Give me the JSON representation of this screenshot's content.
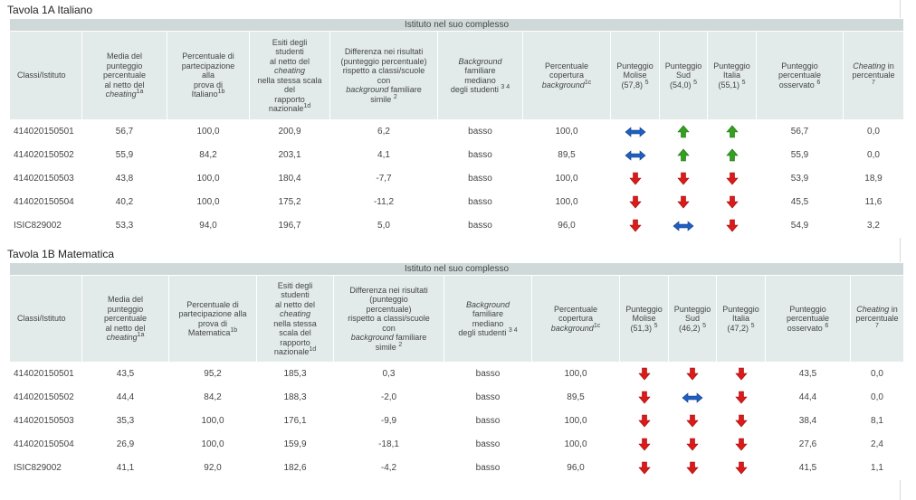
{
  "colors": {
    "caption_bg": "#cfd9d9",
    "header_bg": "#e3eaea",
    "up": "#33a020",
    "down": "#dd1a1a",
    "equal": "#1f5fbf"
  },
  "tables": [
    {
      "title": "Tavola 1A Italiano",
      "caption": "Istituto nel suo complesso",
      "headers": {
        "classi": "Classi/Istituto",
        "media": {
          "l1": "Media del",
          "l2": "punteggio",
          "l3": "percentuale",
          "l4": "al netto del",
          "l5": "cheating",
          "sup": "1a"
        },
        "partecipazione": {
          "l1": "Percentuale di",
          "l2": "partecipazione",
          "l3": "alla",
          "l4": "prova di",
          "l5": "Italiano",
          "sup": "1b"
        },
        "esiti": {
          "l1": "Esiti degli",
          "l2": "studenti",
          "l3": "al netto del",
          "l4": "cheating",
          "l5": "nella stessa scala",
          "l6": "del",
          "l7": "rapporto",
          "l8": "nazionale",
          "sup": "1d"
        },
        "differenza": {
          "l1": "Differenza nei risultati",
          "l2": "(punteggio percentuale)",
          "l3": "rispetto a classi/scuole",
          "l4": "con",
          "l5": "background",
          "l6": "familiare",
          "l7": "simile",
          "sup": "2"
        },
        "background": {
          "l1": "Background",
          "l2": "familiare",
          "l3": "mediano",
          "l4": "degli studenti",
          "sup": "3 4"
        },
        "copertura": {
          "l1": "Percentuale",
          "l2": "copertura",
          "l3": "background",
          "sup": "1c"
        },
        "molise": {
          "l1": "Punteggio",
          "l2": "Molise",
          "l3": "(57,8)",
          "sup": "5"
        },
        "sud": {
          "l1": "Punteggio",
          "l2": "Sud",
          "l3": "(54,0)",
          "sup": "5"
        },
        "italia": {
          "l1": "Punteggio",
          "l2": "Italia",
          "l3": "(55,1)",
          "sup": "5"
        },
        "osservato": {
          "l1": "Punteggio",
          "l2": "percentuale",
          "l3": "osservato",
          "sup": "6"
        },
        "cheating": {
          "l1": "Cheating",
          "l2": "in",
          "l3": "percentuale",
          "sup": "7"
        }
      },
      "rows": [
        {
          "classe": "414020150501",
          "media": "56,7",
          "partecipazione": "100,0",
          "esiti": "200,9",
          "differenza": "6,2",
          "background": "basso",
          "copertura": "100,0",
          "molise": "equal",
          "sud": "up",
          "italia": "up",
          "osservato": "56,7",
          "cheating": "0,0"
        },
        {
          "classe": "414020150502",
          "media": "55,9",
          "partecipazione": "84,2",
          "esiti": "203,1",
          "differenza": "4,1",
          "background": "basso",
          "copertura": "89,5",
          "molise": "equal",
          "sud": "up",
          "italia": "up",
          "osservato": "55,9",
          "cheating": "0,0"
        },
        {
          "classe": "414020150503",
          "media": "43,8",
          "partecipazione": "100,0",
          "esiti": "180,4",
          "differenza": "-7,7",
          "background": "basso",
          "copertura": "100,0",
          "molise": "down",
          "sud": "down",
          "italia": "down",
          "osservato": "53,9",
          "cheating": "18,9"
        },
        {
          "classe": "414020150504",
          "media": "40,2",
          "partecipazione": "100,0",
          "esiti": "175,2",
          "differenza": "-11,2",
          "background": "basso",
          "copertura": "100,0",
          "molise": "down",
          "sud": "down",
          "italia": "down",
          "osservato": "45,5",
          "cheating": "11,6"
        },
        {
          "classe": "ISIC829002",
          "media": "53,3",
          "partecipazione": "94,0",
          "esiti": "196,7",
          "differenza": "5,0",
          "background": "basso",
          "copertura": "96,0",
          "molise": "down",
          "sud": "equal",
          "italia": "down",
          "osservato": "54,9",
          "cheating": "3,2"
        }
      ]
    },
    {
      "title": "Tavola 1B Matematica",
      "caption": "Istituto nel suo complesso",
      "headers": {
        "classi": "Classi/Istituto",
        "media": {
          "l1": "Media del",
          "l2": "punteggio",
          "l3": "percentuale",
          "l4": "al netto del",
          "l5": "cheating",
          "sup": "1a"
        },
        "partecipazione": {
          "l1": "Percentuale di",
          "l2": "partecipazione alla",
          "l3": "prova di",
          "l4": "Matematica",
          "sup": "1b"
        },
        "esiti": {
          "l1": "Esiti degli",
          "l2": "studenti",
          "l3": "al netto del",
          "l4": "cheating",
          "l5": "nella stessa",
          "l6": "scala del",
          "l7": "rapporto",
          "l8": "nazionale",
          "sup": "1d"
        },
        "differenza": {
          "l1": "Differenza nei risultati",
          "l2": "(punteggio",
          "l3": "percentuale)",
          "l4": "rispetto a classi/scuole",
          "l5": "con",
          "l6": "background",
          "l7": "familiare",
          "l8": "simile",
          "sup": "2"
        },
        "background": {
          "l1": "Background",
          "l2": "familiare",
          "l3": "mediano",
          "l4": "degli studenti",
          "sup": "3 4"
        },
        "copertura": {
          "l1": "Percentuale",
          "l2": "copertura",
          "l3": "background",
          "sup": "1c"
        },
        "molise": {
          "l1": "Punteggio",
          "l2": "Molise",
          "l3": "(51,3)",
          "sup": "5"
        },
        "sud": {
          "l1": "Punteggio",
          "l2": "Sud",
          "l3": "(46,2)",
          "sup": "5"
        },
        "italia": {
          "l1": "Punteggio",
          "l2": "Italia",
          "l3": "(47,2)",
          "sup": "5"
        },
        "osservato": {
          "l1": "Punteggio",
          "l2": "percentuale",
          "l3": "osservato",
          "sup": "6"
        },
        "cheating": {
          "l1": "Cheating",
          "l2": "in",
          "l3": "percentuale",
          "sup": "7"
        }
      },
      "rows": [
        {
          "classe": "414020150501",
          "media": "43,5",
          "partecipazione": "95,2",
          "esiti": "185,3",
          "differenza": "0,3",
          "background": "basso",
          "copertura": "100,0",
          "molise": "down",
          "sud": "down",
          "italia": "down",
          "osservato": "43,5",
          "cheating": "0,0"
        },
        {
          "classe": "414020150502",
          "media": "44,4",
          "partecipazione": "84,2",
          "esiti": "188,3",
          "differenza": "-2,0",
          "background": "basso",
          "copertura": "89,5",
          "molise": "down",
          "sud": "equal",
          "italia": "down",
          "osservato": "44,4",
          "cheating": "0,0"
        },
        {
          "classe": "414020150503",
          "media": "35,3",
          "partecipazione": "100,0",
          "esiti": "176,1",
          "differenza": "-9,9",
          "background": "basso",
          "copertura": "100,0",
          "molise": "down",
          "sud": "down",
          "italia": "down",
          "osservato": "38,4",
          "cheating": "8,1"
        },
        {
          "classe": "414020150504",
          "media": "26,9",
          "partecipazione": "100,0",
          "esiti": "159,9",
          "differenza": "-18,1",
          "background": "basso",
          "copertura": "100,0",
          "molise": "down",
          "sud": "down",
          "italia": "down",
          "osservato": "27,6",
          "cheating": "2,4"
        },
        {
          "classe": "ISIC829002",
          "media": "41,1",
          "partecipazione": "92,0",
          "esiti": "182,6",
          "differenza": "-4,2",
          "background": "basso",
          "copertura": "96,0",
          "molise": "down",
          "sud": "down",
          "italia": "down",
          "osservato": "41,5",
          "cheating": "1,1"
        }
      ]
    }
  ]
}
